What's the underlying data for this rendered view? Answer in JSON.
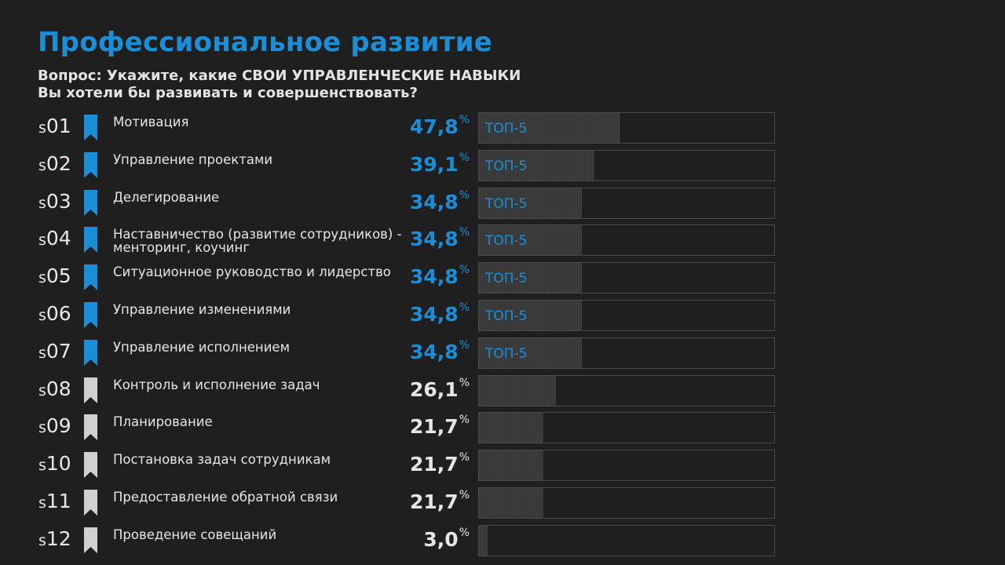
{
  "title": "Профессиональное развитие",
  "question_line1": "Вопрос: Укажите, какие СВОИ УПРАВЛЕНЧЕСКИЕ  НАВЫКИ",
  "question_line2": "Вы хотели бы развивать и совершенствовать?",
  "colors": {
    "accent": "#1a8fd8",
    "background": "#1f1f1f",
    "bar_fill": "#3a3a3a",
    "bookmark_inactive": "#d0d0d0"
  },
  "chart_data": {
    "type": "bar",
    "orientation": "horizontal",
    "unit": "%",
    "xlim": [
      0,
      100
    ],
    "badge_label": "ТОП-5",
    "items": [
      {
        "code_prefix": "s",
        "code_num": "01",
        "label": "Мотивация",
        "value_text": "47,8",
        "value": 47.8,
        "top": true,
        "icon": "bookmark-icon"
      },
      {
        "code_prefix": "s",
        "code_num": "02",
        "label": "Управление проектами",
        "value_text": "39,1",
        "value": 39.1,
        "top": true,
        "icon": "bookmark-icon"
      },
      {
        "code_prefix": "s",
        "code_num": "03",
        "label": "Делегирование",
        "value_text": "34,8",
        "value": 34.8,
        "top": true,
        "icon": "bookmark-icon"
      },
      {
        "code_prefix": "s",
        "code_num": "04",
        "label": "Наставничество (развитие сотрудников) - менторинг, коучинг",
        "value_text": "34,8",
        "value": 34.8,
        "top": true,
        "icon": "bookmark-icon"
      },
      {
        "code_prefix": "s",
        "code_num": "05",
        "label": "Ситуационное руководство и лидерство",
        "value_text": "34,8",
        "value": 34.8,
        "top": true,
        "icon": "bookmark-icon"
      },
      {
        "code_prefix": "s",
        "code_num": "06",
        "label": "Управление изменениями",
        "value_text": "34,8",
        "value": 34.8,
        "top": true,
        "icon": "bookmark-icon"
      },
      {
        "code_prefix": "s",
        "code_num": "07",
        "label": "Управление исполнением",
        "value_text": "34,8",
        "value": 34.8,
        "top": true,
        "icon": "bookmark-icon"
      },
      {
        "code_prefix": "s",
        "code_num": "08",
        "label": "Контроль и исполнение задач",
        "value_text": "26,1",
        "value": 26.1,
        "top": false,
        "icon": "bookmark-icon"
      },
      {
        "code_prefix": "s",
        "code_num": "09",
        "label": "Планирование",
        "value_text": "21,7",
        "value": 21.7,
        "top": false,
        "icon": "bookmark-icon"
      },
      {
        "code_prefix": "s",
        "code_num": "10",
        "label": "Постановка задач сотрудникам",
        "value_text": "21,7",
        "value": 21.7,
        "top": false,
        "icon": "bookmark-icon"
      },
      {
        "code_prefix": "s",
        "code_num": "11",
        "label": "Предоставление обратной связи",
        "value_text": "21,7",
        "value": 21.7,
        "top": false,
        "icon": "bookmark-icon"
      },
      {
        "code_prefix": "s",
        "code_num": "12",
        "label": "Проведение совещаний",
        "value_text": "3,0",
        "value": 3.0,
        "top": false,
        "icon": "bookmark-icon"
      }
    ]
  }
}
